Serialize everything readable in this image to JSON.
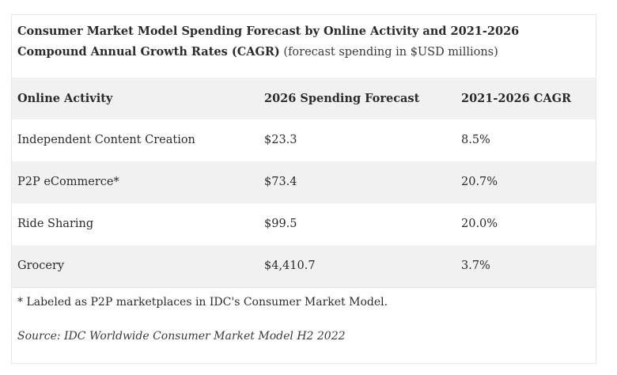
{
  "caption": {
    "title": "Consumer Market Model Spending Forecast by Online Activity and 2021-2026 Compound Annual Growth Rates (CAGR)",
    "subtitle": "(forecast spending in $USD millions)"
  },
  "table": {
    "headers": [
      "Online Activity",
      "2026 Spending Forecast",
      "2021-2026 CAGR"
    ],
    "rows": [
      [
        "Independent Content Creation",
        "$23.3",
        "8.5%"
      ],
      [
        "P2P eCommerce*",
        "$73.4",
        "20.7%"
      ],
      [
        "Ride Sharing",
        "$99.5",
        "20.0%"
      ],
      [
        "Grocery",
        "$4,410.7",
        "3.7%"
      ]
    ]
  },
  "footnote": "* Labeled as P2P marketplaces in IDC's Consumer Market Model.",
  "source": "Source: IDC Worldwide Consumer Market Model H2 2022"
}
